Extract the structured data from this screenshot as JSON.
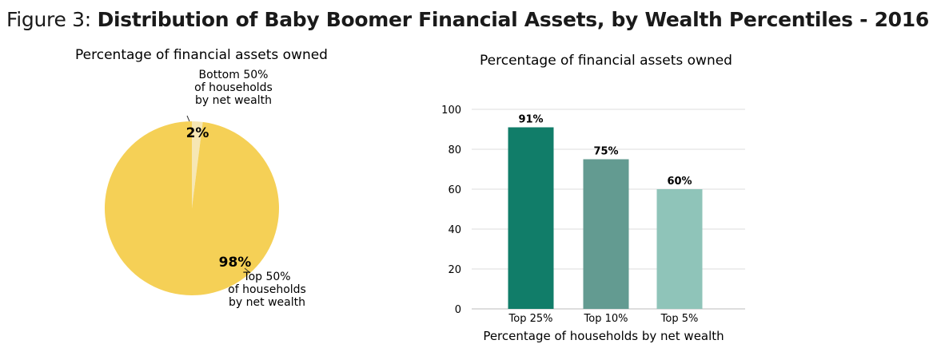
{
  "figure": {
    "prefix": "Figure 3: ",
    "title": "Distribution of Baby Boomer Financial Assets, by Wealth Percentiles - 2016"
  },
  "chart_data": [
    {
      "type": "pie",
      "title": "Percentage of financial assets owned",
      "slices": [
        {
          "label_lines": [
            "Bottom 50%",
            "of households",
            "by net wealth"
          ],
          "value": 2,
          "value_label": "2%",
          "color": "#f6e7b4"
        },
        {
          "label_lines": [
            "Top 50%",
            "of households",
            "by net wealth"
          ],
          "value": 98,
          "value_label": "98%",
          "color": "#f5d056"
        }
      ]
    },
    {
      "type": "bar",
      "title": "Percentage of financial assets owned",
      "xlabel": "Percentage of households by net wealth",
      "ylabel": "",
      "categories": [
        "Top 25%",
        "Top 10%",
        "Top 5%"
      ],
      "values": [
        91,
        75,
        60
      ],
      "value_labels": [
        "91%",
        "75%",
        "60%"
      ],
      "colors": [
        "#117d69",
        "#639b91",
        "#8fc4b9"
      ],
      "ylim": [
        0,
        100
      ],
      "yticks": [
        0,
        20,
        40,
        60,
        80,
        100
      ],
      "grid": true
    }
  ]
}
